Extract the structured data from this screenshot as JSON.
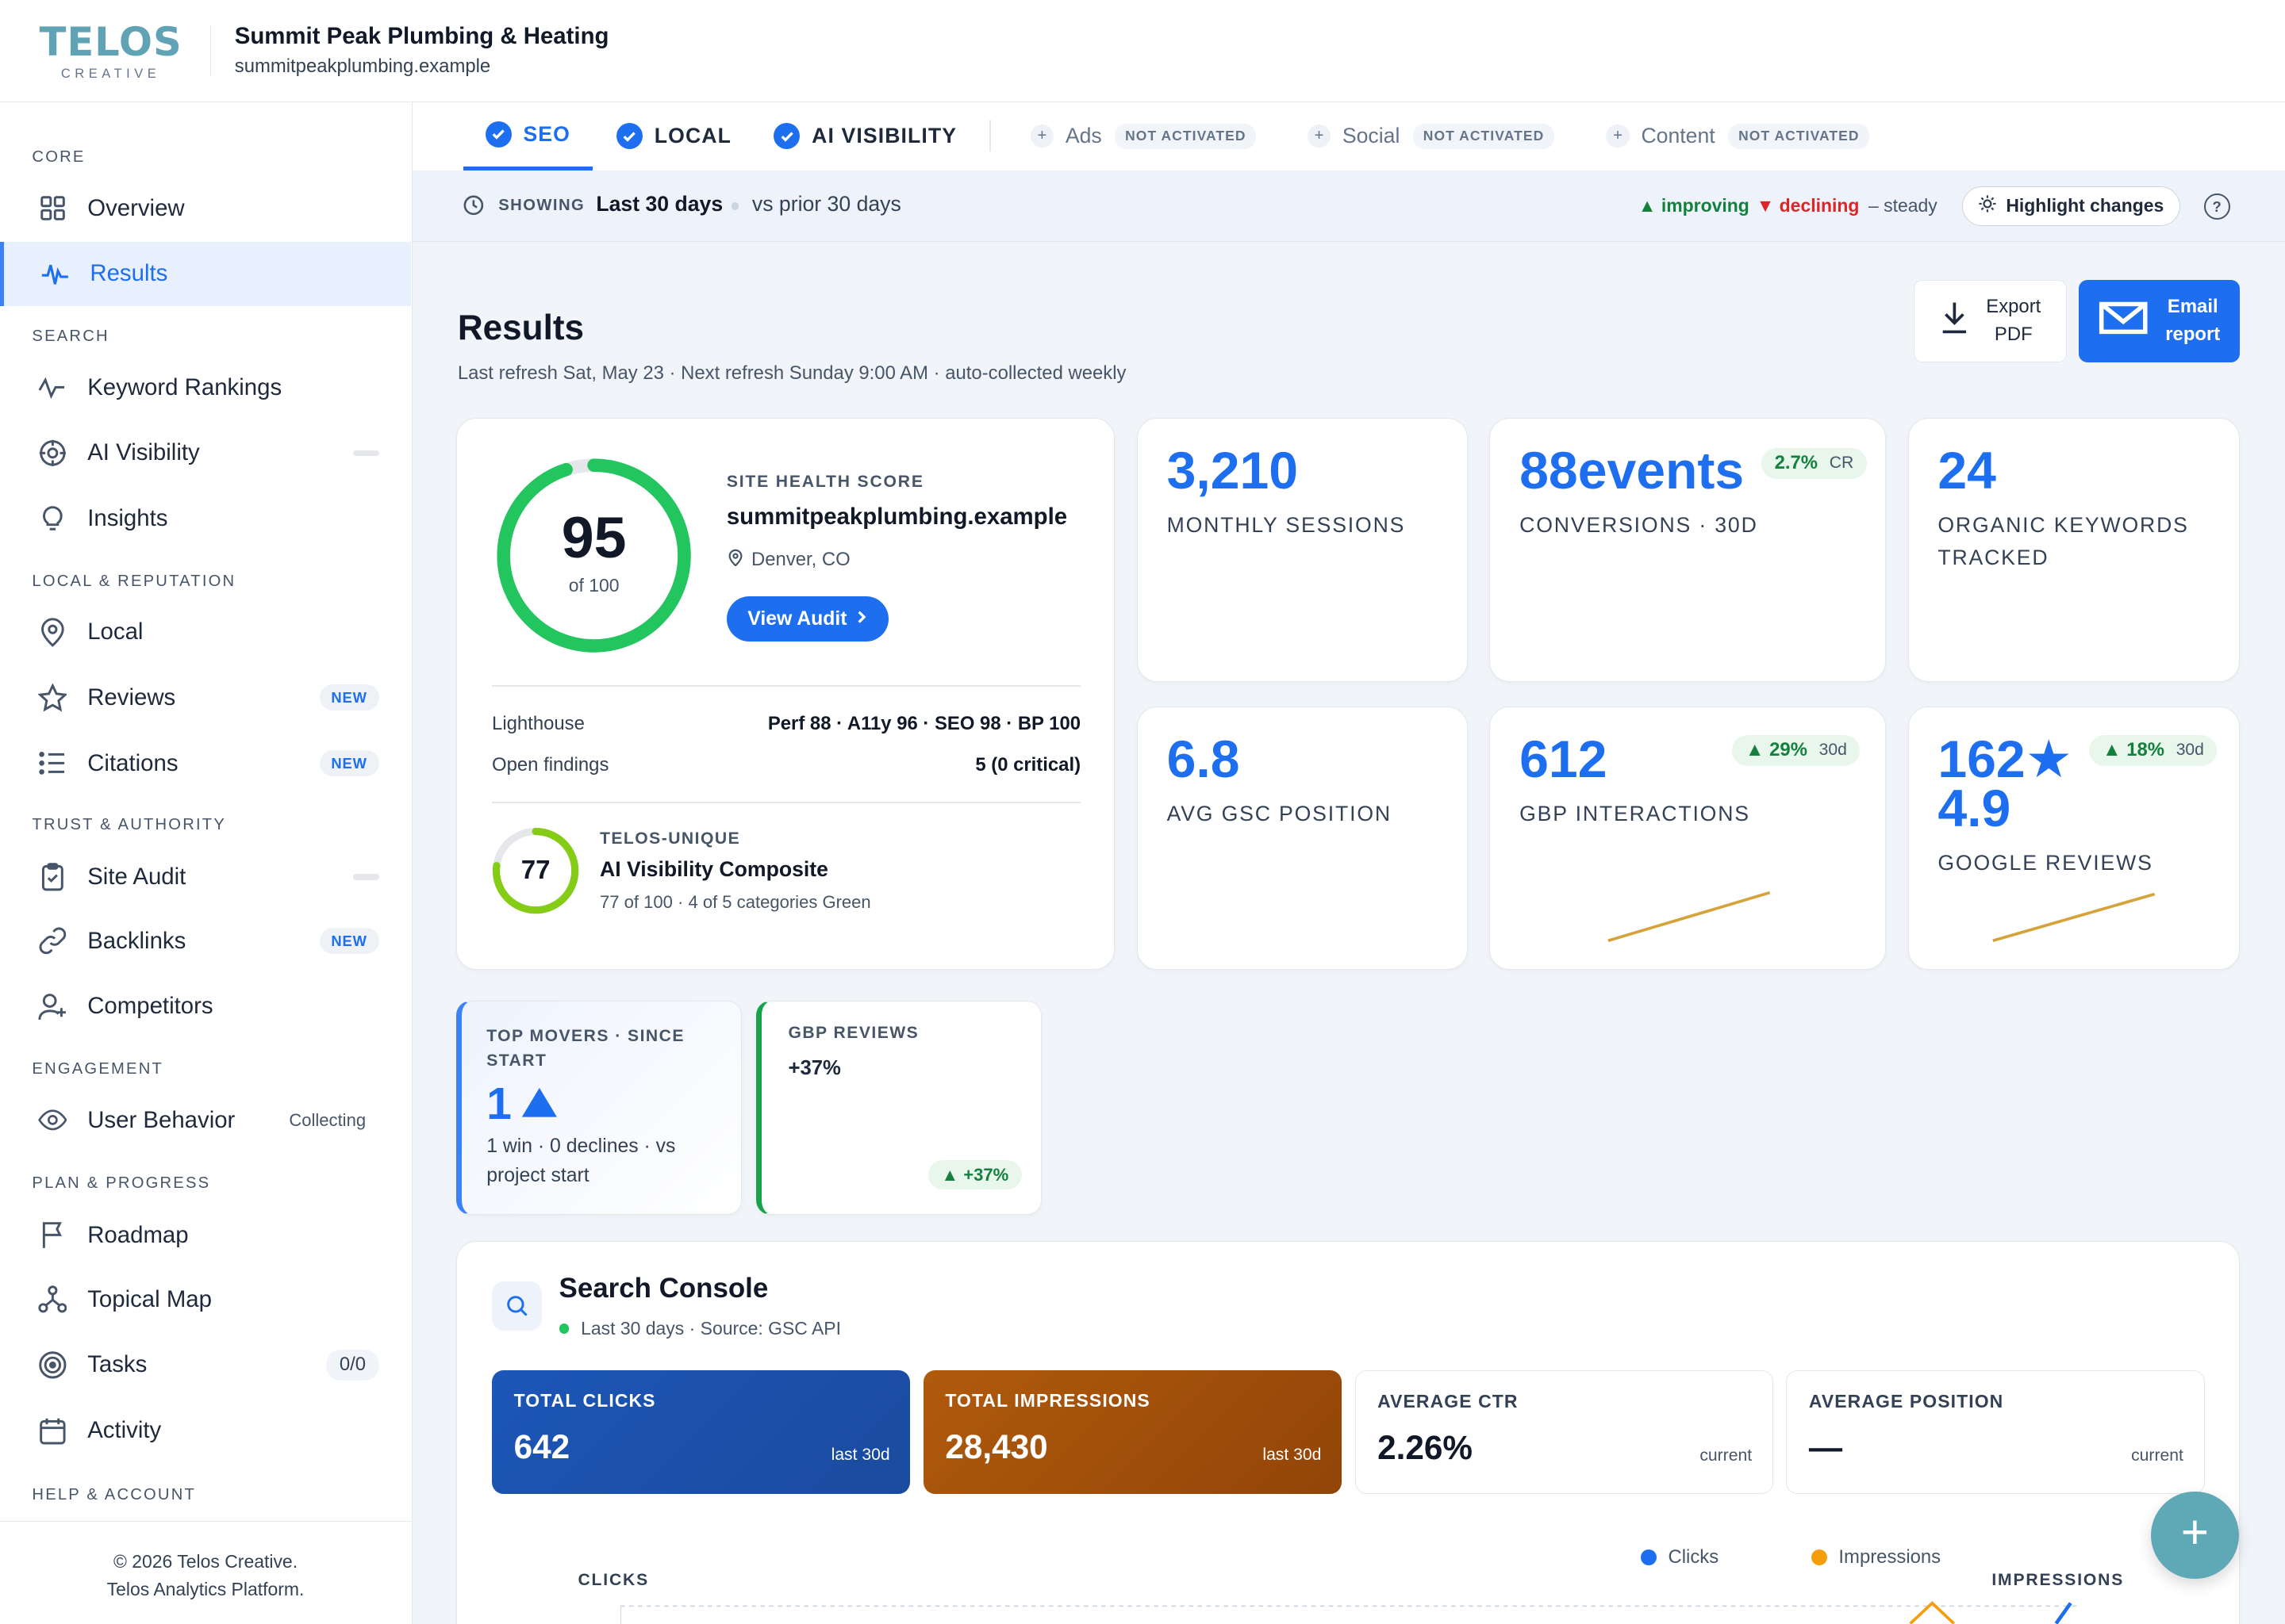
{
  "brand": {
    "name": "TELOS",
    "tagline": "CREATIVE"
  },
  "client": {
    "name": "Summit Peak Plumbing & Heating",
    "domain": "summitpeakplumbing.example"
  },
  "sidebar": {
    "sections": [
      "CORE",
      "SEARCH",
      "LOCAL & REPUTATION",
      "TRUST & AUTHORITY",
      "ENGAGEMENT",
      "PLAN & PROGRESS",
      "HELP & ACCOUNT"
    ],
    "items": [
      {
        "label": "Overview",
        "icon": "grid-icon"
      },
      {
        "label": "Results",
        "icon": "pulse-icon",
        "active": true
      },
      {
        "label": "Keyword Rankings",
        "icon": "trend-icon"
      },
      {
        "label": "AI Visibility",
        "icon": "target-icon"
      },
      {
        "label": "Insights",
        "icon": "lightbulb-icon"
      },
      {
        "label": "Local",
        "icon": "map-pin-icon"
      },
      {
        "label": "Reviews",
        "icon": "star-icon",
        "badge": "NEW"
      },
      {
        "label": "Citations",
        "icon": "list-icon",
        "badge": "NEW"
      },
      {
        "label": "Site Audit",
        "icon": "clipboard-check-icon"
      },
      {
        "label": "Backlinks",
        "icon": "link-icon",
        "badge": "NEW"
      },
      {
        "label": "Competitors",
        "icon": "user-plus-icon"
      },
      {
        "label": "User Behavior",
        "icon": "eye-icon",
        "status": "Collecting"
      },
      {
        "label": "Roadmap",
        "icon": "flag-icon"
      },
      {
        "label": "Topical Map",
        "icon": "network-icon"
      },
      {
        "label": "Tasks",
        "icon": "bullseye-icon",
        "count": "0/0"
      },
      {
        "label": "Activity",
        "icon": "calendar-icon"
      }
    ],
    "footer_line1": "© 2026 Telos Creative.",
    "footer_line2": "Telos Analytics Platform."
  },
  "tabs": {
    "active": [
      {
        "label": "SEO"
      },
      {
        "label": "LOCAL"
      },
      {
        "label": "AI VISIBILITY"
      }
    ],
    "inactive": [
      {
        "label": "Ads"
      },
      {
        "label": "Social"
      },
      {
        "label": "Content"
      }
    ],
    "inactive_badge": "NOT ACTIVATED"
  },
  "showing": {
    "label": "SHOWING",
    "range": "Last 30 days",
    "compare": "vs prior 30 days",
    "improving": "▲ improving",
    "declining": "▼ declining",
    "steady": "– steady",
    "highlight_btn": "Highlight changes",
    "help": "?"
  },
  "colors": {
    "primary": "#1d6ff0",
    "improving": "#15803d",
    "declining": "#dc2626",
    "clicks": "#1d56b8",
    "impressions": "#a2520b",
    "brand": "#5fa3b5"
  },
  "results": {
    "title": "Results",
    "subtitle": "Last refresh Sat, May 23 · Next refresh Sunday 9:00 AM · auto-collected weekly",
    "export_l1": "Export",
    "export_l2": "PDF",
    "email_l1": "Email",
    "email_l2": "report"
  },
  "health": {
    "score": "95",
    "score_value": 95,
    "of": "of 100",
    "label": "SITE HEALTH SCORE",
    "domain": "summitpeakplumbing.example",
    "location": "Denver, CO",
    "view_audit": "View Audit",
    "lighthouse_label": "Lighthouse",
    "lighthouse_value": "Perf 88 · A11y 96 · SEO 98 · BP 100",
    "findings_label": "Open findings",
    "findings_value": "5 (0 critical)",
    "ai_score": "77",
    "ai_score_value": 77,
    "ai_kicker": "TELOS-UNIQUE",
    "ai_title": "AI Visibility Composite",
    "ai_sub": "77 of 100 · 4 of 5 categories Green"
  },
  "kpis": {
    "sessions": {
      "value": "3,210",
      "label": "MONTHLY SESSIONS"
    },
    "conversions": {
      "value": "88events",
      "label": "CONVERSIONS · 30D",
      "pill": "2.7%",
      "pill_sub": "CR"
    },
    "keywords": {
      "value": "24",
      "label_1": "ORGANIC KEYWORDS",
      "label_2": "TRACKED"
    },
    "position": {
      "value": "6.8",
      "label": "AVG GSC POSITION"
    },
    "gbp": {
      "value": "612",
      "label": "GBP INTERACTIONS",
      "pill": "▲ 29%",
      "pill_sub": "30d"
    },
    "reviews": {
      "value_1": "162★",
      "value_2": "4.9",
      "label": "GOOGLE REVIEWS",
      "pill": "▲ 18%",
      "pill_sub": "30d"
    }
  },
  "movers": {
    "title": "TOP MOVERS · SINCE START",
    "value": "1",
    "desc": "1 win · 0 declines · vs project start"
  },
  "gbp_reviews": {
    "title": "GBP REVIEWS",
    "value": "+37%",
    "pill": "▲ +37%"
  },
  "search_console": {
    "title": "Search Console",
    "subtitle": "Last 30 days · Source: GSC API",
    "metrics": [
      {
        "label": "TOTAL CLICKS",
        "value": "642",
        "period": "last 30d"
      },
      {
        "label": "TOTAL IMPRESSIONS",
        "value": "28,430",
        "period": "last 30d"
      },
      {
        "label": "AVERAGE CTR",
        "value": "2.26%",
        "period": "current"
      },
      {
        "label": "AVERAGE POSITION",
        "value": "—",
        "period": "current"
      }
    ],
    "legend_clicks": "Clicks",
    "legend_impressions": "Impressions",
    "axis_left": "CLICKS",
    "axis_right": "IMPRESSIONS"
  }
}
